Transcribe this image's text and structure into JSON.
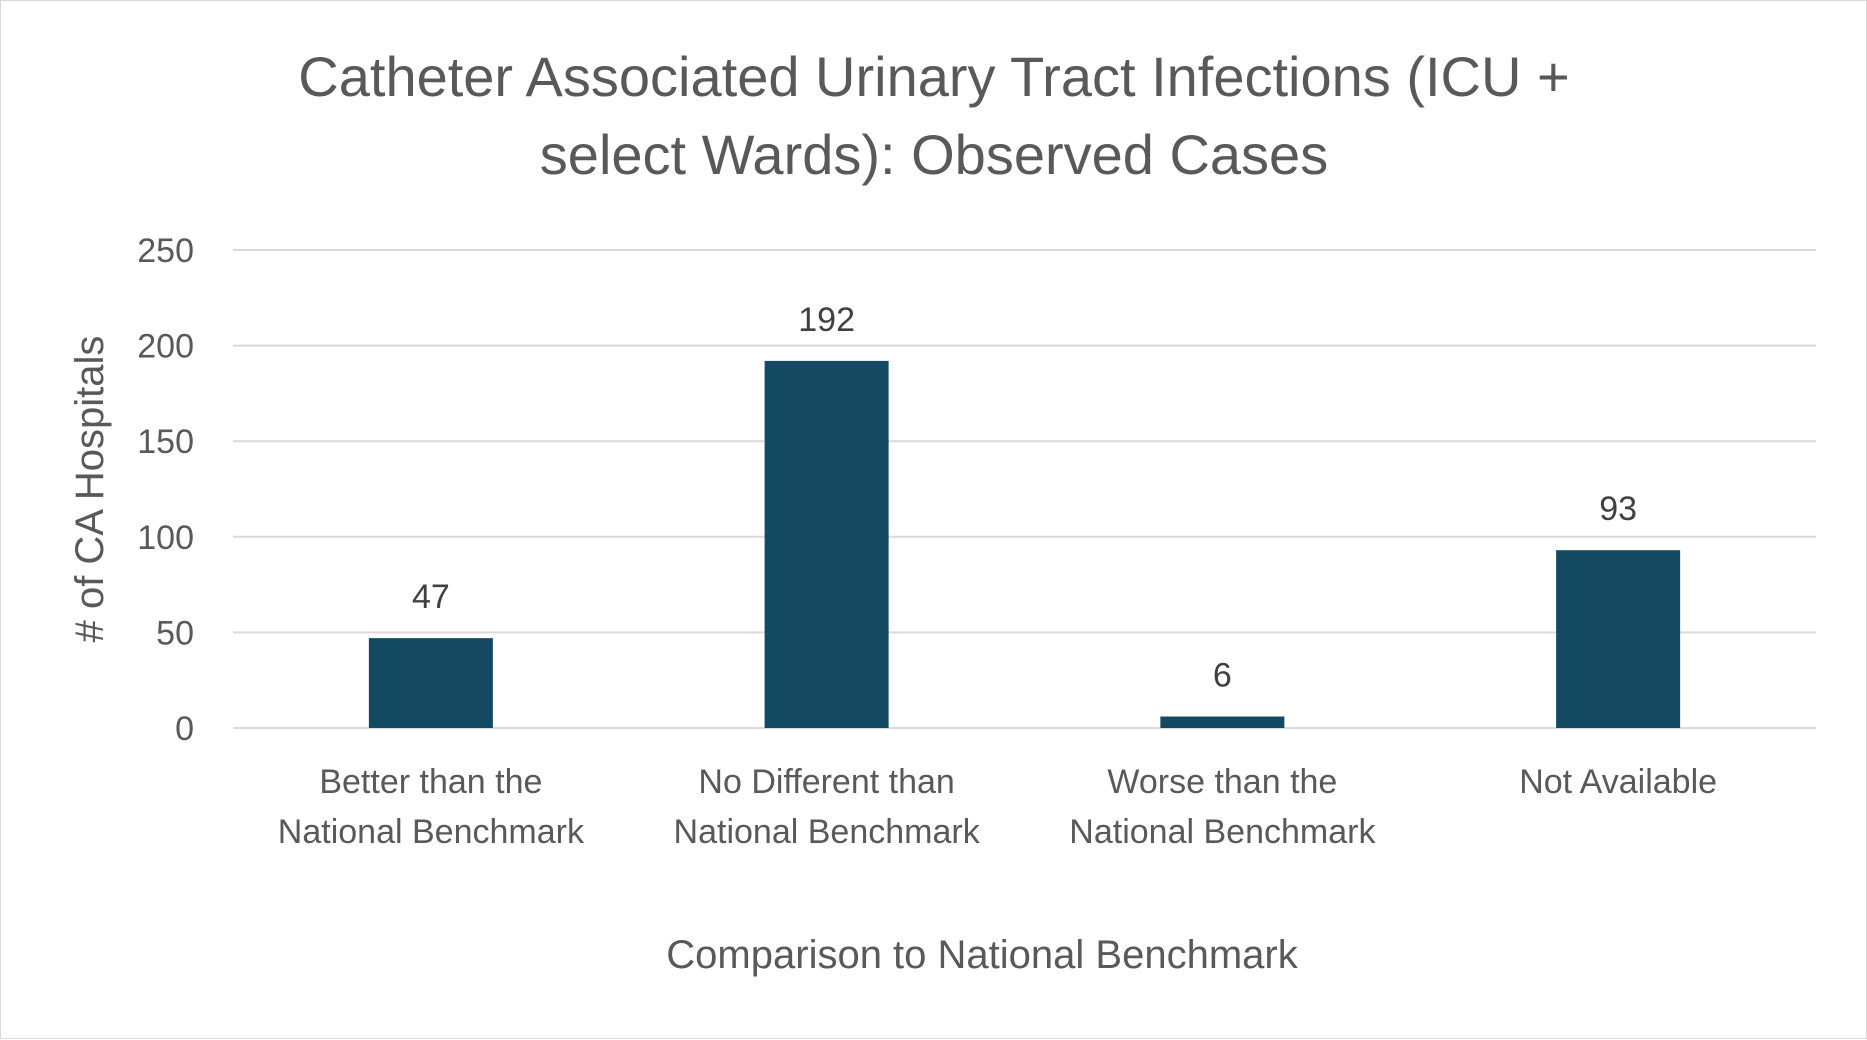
{
  "chart_data": {
    "type": "bar",
    "title_lines": [
      "Catheter Associated Urinary Tract Infections (ICU +",
      "select Wards): Observed Cases"
    ],
    "xlabel": "Comparison to National Benchmark",
    "ylabel": "# of CA Hospitals",
    "categories": [
      [
        "Better than the",
        "National Benchmark"
      ],
      [
        "No Different than",
        "National Benchmark"
      ],
      [
        "Worse than the",
        "National Benchmark"
      ],
      [
        "Not Available"
      ]
    ],
    "values": [
      47,
      192,
      6,
      93
    ],
    "ylim": [
      0,
      250
    ],
    "yticks": [
      0,
      50,
      100,
      150,
      200,
      250
    ],
    "grid": true,
    "legend": "none",
    "bar_color": "#134a62",
    "gridline_color": "#d9d9d9"
  }
}
